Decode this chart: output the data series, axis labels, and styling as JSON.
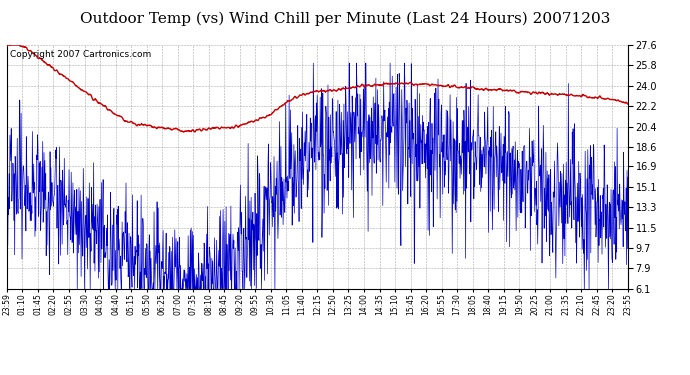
{
  "title": "Outdoor Temp (vs) Wind Chill per Minute (Last 24 Hours) 20071203",
  "copyright_text": "Copyright 2007 Cartronics.com",
  "background_color": "#ffffff",
  "plot_background": "#ffffff",
  "grid_color": "#aaaaaa",
  "ylim": [
    6.1,
    27.6
  ],
  "yticks": [
    6.1,
    7.9,
    9.7,
    11.5,
    13.3,
    15.1,
    16.9,
    18.6,
    20.4,
    22.2,
    24.0,
    25.8,
    27.6
  ],
  "xtick_labels": [
    "23:59",
    "01:10",
    "01:45",
    "02:20",
    "02:55",
    "03:30",
    "04:05",
    "04:40",
    "05:15",
    "05:50",
    "06:25",
    "07:00",
    "07:35",
    "08:10",
    "08:45",
    "09:20",
    "09:55",
    "10:30",
    "11:05",
    "11:40",
    "12:15",
    "12:50",
    "13:25",
    "14:00",
    "14:35",
    "15:10",
    "15:45",
    "16:20",
    "16:55",
    "17:30",
    "18:05",
    "18:40",
    "19:15",
    "19:50",
    "20:25",
    "21:00",
    "21:35",
    "22:10",
    "22:45",
    "23:20",
    "23:55"
  ],
  "red_line_color": "#cc0000",
  "blue_line_color": "#0000cc",
  "title_fontsize": 11,
  "copyright_fontsize": 6.5,
  "red_base": [
    27.5,
    27.5,
    26.5,
    25.5,
    24.5,
    23.5,
    22.5,
    21.5,
    20.8,
    20.5,
    20.3,
    20.1,
    20.0,
    20.2,
    20.3,
    20.5,
    21.0,
    21.5,
    22.5,
    23.2,
    23.5,
    23.6,
    23.8,
    24.0,
    24.1,
    24.2,
    24.2,
    24.1,
    24.0,
    23.9,
    23.8,
    23.7,
    23.6,
    23.5,
    23.4,
    23.3,
    23.2,
    23.1,
    23.0,
    22.8,
    22.5
  ],
  "blue_base": [
    17.5,
    16.5,
    15.5,
    14.5,
    13.5,
    12.5,
    11.5,
    10.5,
    9.5,
    8.5,
    8.0,
    7.5,
    7.0,
    7.5,
    8.0,
    9.0,
    11.0,
    14.0,
    17.0,
    18.5,
    19.0,
    19.5,
    20.0,
    20.5,
    20.5,
    20.5,
    20.0,
    19.5,
    19.0,
    18.5,
    18.0,
    17.5,
    17.0,
    16.5,
    16.0,
    15.5,
    15.0,
    14.5,
    14.0,
    13.5,
    13.0
  ]
}
